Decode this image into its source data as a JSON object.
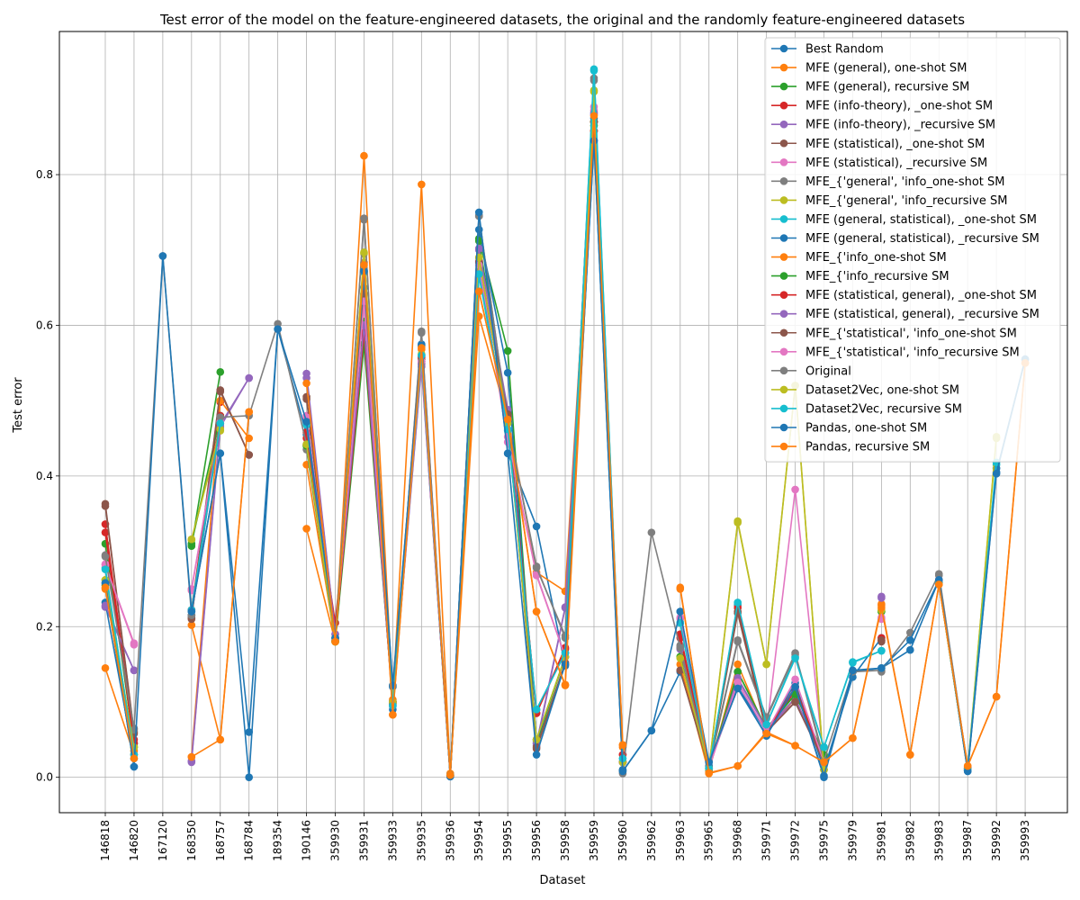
{
  "chart_data": {
    "type": "line",
    "title": "Test error of the model on the feature-engineered datasets, the original and the randomly feature-engineered datasets",
    "xlabel": "Dataset",
    "ylabel": "Test error",
    "ylim": [
      -0.047,
      0.99
    ],
    "yticks": [
      0.0,
      0.2,
      0.4,
      0.6,
      0.8
    ],
    "ytick_labels": [
      "0.0",
      "0.2",
      "0.4",
      "0.6",
      "0.8"
    ],
    "grid": true,
    "legend_position": "top-right",
    "categories": [
      "146818",
      "146820",
      "167120",
      "168350",
      "168757",
      "168784",
      "189354",
      "190146",
      "359930",
      "359931",
      "359933",
      "359935",
      "359936",
      "359954",
      "359955",
      "359956",
      "359958",
      "359959",
      "359960",
      "359962",
      "359963",
      "359965",
      "359968",
      "359971",
      "359972",
      "359975",
      "359979",
      "359981",
      "359982",
      "359983",
      "359987",
      "359992",
      "359993"
    ],
    "series": [
      {
        "name": "Best Random",
        "color": "#1f77b4",
        "values": [
          0.258,
          0.014,
          null,
          0.22,
          0.43,
          0.0,
          0.595,
          0.455,
          0.185,
          0.672,
          0.12,
          0.573,
          0.001,
          0.746,
          0.43,
          0.333,
          0.148,
          0.845,
          0.008,
          0.062,
          0.14,
          0.02,
          0.118,
          0.055,
          0.12,
          0.0,
          0.14,
          0.145,
          0.169,
          0.262,
          0.008,
          0.405,
          0.555
        ]
      },
      {
        "name": "MFE (general), one-shot SM",
        "color": "#ff7f0e",
        "values": [
          0.145,
          0.03,
          null,
          0.202,
          0.05,
          0.485,
          null,
          0.415,
          0.18,
          0.683,
          0.083,
          0.568,
          0.003,
          0.645,
          0.478,
          0.272,
          0.247,
          0.87,
          0.04,
          null,
          0.25,
          0.008,
          0.15,
          0.06,
          0.105,
          0.02,
          null,
          0.23,
          null,
          0.256,
          0.012,
          null,
          null
        ]
      },
      {
        "name": "MFE (general), recursive SM",
        "color": "#2ca02c",
        "values": [
          0.31,
          0.045,
          null,
          0.307,
          0.538,
          null,
          null,
          0.44,
          0.18,
          0.605,
          0.097,
          0.555,
          0.003,
          0.715,
          0.566,
          0.045,
          0.16,
          0.865,
          0.02,
          null,
          0.16,
          0.01,
          0.14,
          0.065,
          0.11,
          0.03,
          null,
          0.22,
          null,
          0.258,
          0.01,
          null,
          null
        ]
      },
      {
        "name": "MFE (info-theory), _one-shot SM",
        "color": "#d62728",
        "values": [
          0.336,
          0.05,
          null,
          0.222,
          0.498,
          null,
          null,
          0.458,
          0.205,
          0.585,
          0.098,
          0.557,
          0.003,
          0.684,
          0.485,
          0.085,
          0.172,
          0.858,
          0.03,
          null,
          0.19,
          0.012,
          0.228,
          0.06,
          0.115,
          0.02,
          null,
          0.182,
          null,
          0.258,
          0.012,
          null,
          null
        ]
      },
      {
        "name": "MFE (info-theory), _recursive SM",
        "color": "#9467bd",
        "values": [
          0.226,
          0.142,
          null,
          0.02,
          0.465,
          0.53,
          null,
          0.536,
          0.19,
          0.6,
          0.095,
          0.545,
          0.002,
          0.7,
          0.485,
          0.042,
          0.225,
          0.88,
          0.02,
          null,
          0.172,
          0.012,
          0.13,
          0.065,
          0.105,
          0.02,
          null,
          0.24,
          null,
          0.262,
          0.01,
          null,
          null
        ]
      },
      {
        "name": "MFE (statistical), _one-shot SM",
        "color": "#8c564b",
        "values": [
          0.363,
          0.06,
          null,
          0.212,
          0.514,
          0.428,
          null,
          0.505,
          0.185,
          0.64,
          0.1,
          0.55,
          0.002,
          0.68,
          0.48,
          0.038,
          0.15,
          0.87,
          0.02,
          null,
          0.142,
          0.012,
          0.218,
          0.06,
          0.1,
          0.02,
          null,
          0.18,
          null,
          0.26,
          0.01,
          null,
          null
        ]
      },
      {
        "name": "MFE (statistical), _recursive SM",
        "color": "#e377c2",
        "values": [
          0.283,
          0.178,
          null,
          0.25,
          0.47,
          null,
          null,
          0.48,
          0.185,
          0.63,
          0.1,
          0.552,
          0.003,
          0.68,
          0.445,
          0.27,
          0.16,
          0.885,
          0.02,
          null,
          0.21,
          0.012,
          0.125,
          0.06,
          0.382,
          0.02,
          null,
          0.21,
          null,
          0.26,
          0.01,
          null,
          null
        ]
      },
      {
        "name": "MFE_{'general', 'info_one-shot SM",
        "color": "#7f7f7f",
        "values": [
          0.295,
          0.065,
          null,
          0.215,
          0.475,
          null,
          null,
          0.435,
          0.182,
          0.74,
          0.1,
          0.592,
          0.003,
          0.745,
          0.47,
          0.28,
          0.185,
          0.928,
          0.01,
          null,
          0.175,
          0.015,
          0.182,
          0.08,
          0.165,
          0.025,
          null,
          0.14,
          null,
          0.268,
          0.012,
          null,
          null
        ]
      },
      {
        "name": "MFE_{'general', 'info_recursive SM",
        "color": "#bcbd22",
        "values": [
          0.262,
          0.04,
          null,
          0.315,
          0.46,
          null,
          null,
          0.44,
          0.18,
          0.695,
          0.1,
          0.56,
          0.003,
          0.69,
          0.47,
          0.05,
          0.16,
          0.91,
          0.02,
          null,
          0.16,
          0.012,
          0.338,
          0.15,
          0.52,
          0.01,
          null,
          0.22,
          null,
          0.258,
          0.01,
          0.45,
          null
        ]
      },
      {
        "name": "MFE (general, statistical), _one-shot SM",
        "color": "#17becf",
        "values": [
          0.278,
          0.03,
          null,
          0.222,
          0.47,
          null,
          null,
          0.47,
          0.185,
          0.67,
          0.095,
          0.56,
          0.003,
          0.665,
          0.46,
          0.09,
          0.165,
          0.94,
          0.025,
          null,
          0.205,
          0.012,
          0.23,
          0.07,
          0.16,
          0.04,
          0.152,
          0.168,
          null,
          0.258,
          0.01,
          0.415,
          null
        ]
      },
      {
        "name": "MFE (general, statistical), _recursive SM",
        "color": "#1f77b4",
        "values": [
          0.232,
          0.025,
          null,
          0.215,
          0.47,
          null,
          null,
          0.476,
          0.185,
          0.65,
          0.09,
          0.575,
          0.003,
          0.727,
          0.537,
          0.048,
          0.16,
          0.875,
          0.01,
          null,
          0.22,
          0.015,
          0.12,
          0.06,
          0.125,
          0.01,
          0.133,
          0.185,
          null,
          0.26,
          0.01,
          0.41,
          null
        ]
      },
      {
        "name": "MFE_{'info_one-shot SM",
        "color": "#ff7f0e",
        "values": [
          0.25,
          0.035,
          null,
          0.027,
          0.5,
          0.45,
          null,
          0.33,
          0.18,
          0.825,
          0.103,
          0.787,
          0.005,
          0.612,
          0.475,
          0.22,
          0.122,
          0.858,
          0.043,
          null,
          0.15,
          0.005,
          0.015,
          0.06,
          0.042,
          0.02,
          0.052,
          0.228,
          0.03,
          0.256,
          0.015,
          0.107,
          0.55
        ]
      },
      {
        "name": "MFE_{'info_recursive SM",
        "color": "#2ca02c",
        "values": [
          0.255,
          0.04,
          null,
          0.31,
          0.48,
          null,
          null,
          0.44,
          0.18,
          0.575,
          0.1,
          0.56,
          0.003,
          0.712,
          0.48,
          0.05,
          0.16,
          0.87,
          0.02,
          null,
          0.16,
          0.012,
          0.14,
          0.065,
          0.11,
          0.03,
          null,
          0.22,
          null,
          0.258,
          0.01,
          null,
          null
        ]
      },
      {
        "name": "MFE (statistical, general), _one-shot SM",
        "color": "#d62728",
        "values": [
          0.325,
          0.045,
          null,
          0.222,
          0.48,
          null,
          null,
          0.45,
          0.185,
          0.59,
          0.1,
          0.558,
          0.003,
          0.685,
          0.48,
          0.085,
          0.17,
          0.858,
          0.03,
          null,
          0.185,
          0.012,
          0.225,
          0.06,
          0.12,
          0.02,
          null,
          0.185,
          null,
          0.258,
          0.012,
          null,
          null
        ]
      },
      {
        "name": "MFE (statistical, general), _recursive SM",
        "color": "#9467bd",
        "values": [
          0.228,
          0.142,
          null,
          0.022,
          0.468,
          0.53,
          null,
          0.53,
          0.19,
          0.6,
          0.095,
          0.548,
          0.002,
          0.702,
          0.488,
          0.045,
          0.226,
          0.882,
          0.02,
          null,
          0.17,
          0.012,
          0.132,
          0.065,
          0.1,
          0.02,
          null,
          0.238,
          null,
          0.262,
          0.01,
          null,
          null
        ]
      },
      {
        "name": "MFE_{'statistical', 'info_one-shot SM",
        "color": "#8c564b",
        "values": [
          0.36,
          0.058,
          null,
          0.21,
          0.512,
          0.428,
          null,
          0.502,
          0.185,
          0.642,
          0.1,
          0.552,
          0.002,
          0.682,
          0.482,
          0.04,
          0.152,
          0.87,
          0.02,
          null,
          0.142,
          0.012,
          0.22,
          0.06,
          0.1,
          0.02,
          null,
          0.182,
          null,
          0.26,
          0.01,
          null,
          null
        ]
      },
      {
        "name": "MFE_{'statistical', 'info_recursive SM",
        "color": "#e377c2",
        "values": [
          0.282,
          0.176,
          null,
          0.248,
          0.472,
          null,
          null,
          0.478,
          0.185,
          0.632,
          0.1,
          0.552,
          0.003,
          0.68,
          0.452,
          0.268,
          0.16,
          0.89,
          0.02,
          null,
          0.212,
          0.012,
          0.126,
          0.06,
          0.13,
          0.02,
          null,
          0.212,
          null,
          0.26,
          0.01,
          null,
          null
        ]
      },
      {
        "name": "Original",
        "color": "#7f7f7f",
        "values": [
          0.293,
          0.063,
          0.692,
          0.215,
          0.478,
          0.48,
          0.602,
          0.442,
          0.182,
          0.742,
          0.098,
          0.59,
          0.003,
          0.745,
          0.47,
          0.278,
          0.188,
          0.925,
          0.005,
          0.325,
          0.172,
          0.012,
          0.18,
          0.078,
          0.163,
          0.022,
          0.14,
          0.142,
          0.192,
          0.27,
          0.012,
          null,
          null
        ]
      },
      {
        "name": "Dataset2Vec, one-shot SM",
        "color": "#bcbd22",
        "values": [
          0.262,
          0.04,
          null,
          0.316,
          0.462,
          null,
          null,
          0.442,
          0.18,
          0.697,
          0.1,
          0.562,
          0.003,
          0.69,
          0.47,
          0.05,
          0.16,
          0.912,
          0.02,
          null,
          0.158,
          0.012,
          0.34,
          0.15,
          0.52,
          0.01,
          null,
          0.222,
          null,
          0.258,
          0.01,
          0.452,
          null
        ]
      },
      {
        "name": "Dataset2Vec, recursive SM",
        "color": "#17becf",
        "values": [
          0.276,
          0.03,
          null,
          0.222,
          0.47,
          null,
          null,
          0.468,
          0.185,
          0.672,
          0.095,
          0.56,
          0.003,
          0.668,
          0.462,
          0.09,
          0.165,
          0.938,
          0.025,
          null,
          0.205,
          0.012,
          0.232,
          0.07,
          0.158,
          0.04,
          0.153,
          0.168,
          null,
          0.258,
          0.01,
          0.418,
          null
        ]
      },
      {
        "name": "Pandas, one-shot SM",
        "color": "#1f77b4",
        "values": [
          0.258,
          0.014,
          0.692,
          0.22,
          0.43,
          0.06,
          0.595,
          0.472,
          0.185,
          0.672,
          0.122,
          0.573,
          0.001,
          0.75,
          0.43,
          0.03,
          0.15,
          0.845,
          0.008,
          0.062,
          0.22,
          0.02,
          0.118,
          0.055,
          0.12,
          0.002,
          0.142,
          0.145,
          0.182,
          0.262,
          0.008,
          0.403,
          0.555
        ]
      },
      {
        "name": "Pandas, recursive SM",
        "color": "#ff7f0e",
        "values": [
          0.252,
          0.025,
          null,
          0.027,
          0.05,
          0.485,
          null,
          0.523,
          0.18,
          0.68,
          0.083,
          0.57,
          0.003,
          0.645,
          0.475,
          0.22,
          0.123,
          0.878,
          0.043,
          null,
          0.252,
          0.006,
          0.015,
          0.058,
          0.042,
          0.02,
          0.052,
          0.225,
          0.03,
          0.256,
          0.015,
          0.107,
          0.55
        ]
      }
    ]
  }
}
